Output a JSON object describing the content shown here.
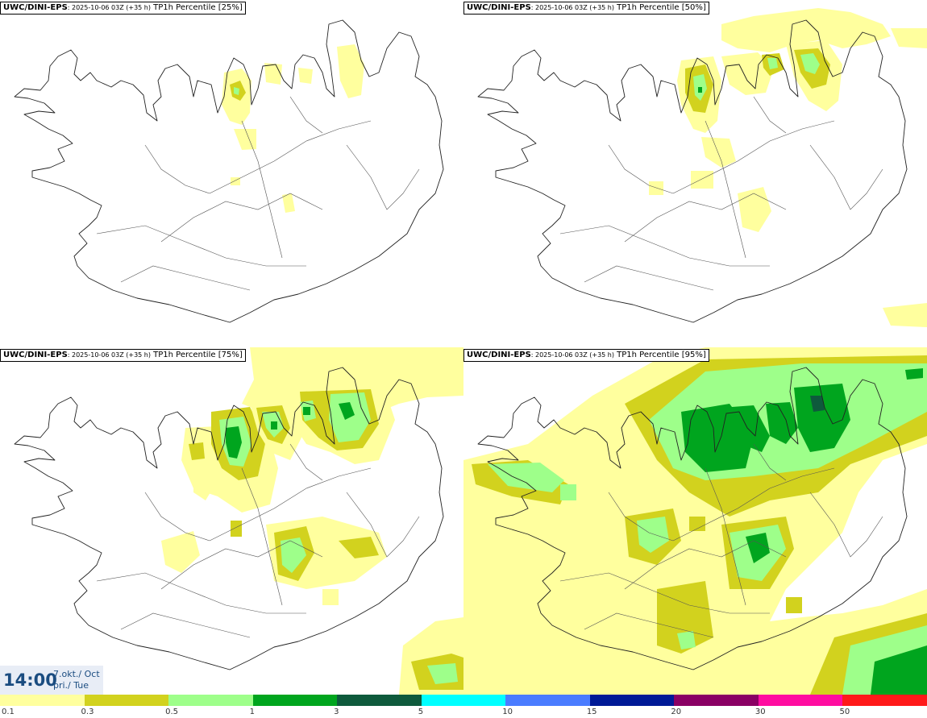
{
  "panels": [
    {
      "source": "UWC/DINI-EPS",
      "run": ": 2025-10-06 03Z (+35 h)",
      "field": " TP1h Percentile [25%]"
    },
    {
      "source": "UWC/DINI-EPS",
      "run": ": 2025-10-06 03Z (+35 h)",
      "field": " TP1h Percentile [50%]"
    },
    {
      "source": "UWC/DINI-EPS",
      "run": ": 2025-10-06 03Z (+35 h)",
      "field": " TP1h Percentile [75%]"
    },
    {
      "source": "UWC/DINI-EPS",
      "run": ": 2025-10-06 03Z (+35 h)",
      "field": " TP1h Percentile [95%]"
    }
  ],
  "valid_time": {
    "time": "14:00",
    "date_line1": "7.okt./ Oct",
    "date_line2": "þri./ Tue"
  },
  "legend": {
    "colors": [
      "#ffff9e",
      "#d2d21e",
      "#9eff8a",
      "#00a51e",
      "#0e5a3c",
      "#00ffff",
      "#4a7cff",
      "#001a96",
      "#8a0064",
      "#ff0ca0",
      "#ff1a1a"
    ],
    "ticks": [
      "0.1",
      "0.3",
      "0.5",
      "1",
      "3",
      "5",
      "10",
      "15",
      "20",
      "30",
      "50"
    ]
  },
  "precip_colors": {
    "light": "#ffff9e",
    "olive": "#d2d21e",
    "pale_green": "#9eff8a",
    "green": "#00a51e",
    "dark_green": "#0e5a3c"
  }
}
